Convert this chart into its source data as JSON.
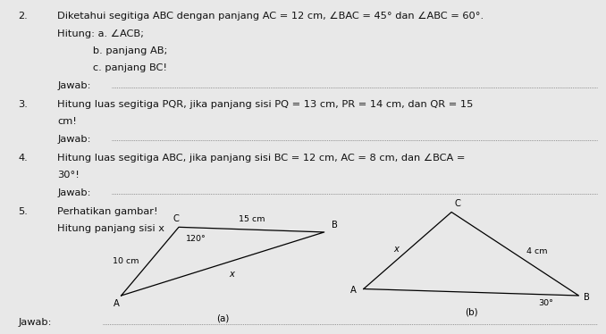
{
  "bg_color": "#e8e8e8",
  "text_color": "#111111",
  "questions": [
    {
      "num": "2.",
      "line1": "Diketahui segitiga ABC dengan panjang AC = 12 cm, ∠BAC = 45° dan ∠ABC = 60°.",
      "line2": "Hitung: a. ∠ACB;",
      "line3": "           b. panjang AB;",
      "line4": "           c. panjang BC!",
      "jawab": "Jawab: "
    },
    {
      "num": "3.",
      "line1": "Hitung luas segitiga PQR, jika panjang sisi PQ = 13 cm, PR = 14 cm, dan QR = 15",
      "line2": "cm!",
      "jawab": "Jawab: "
    },
    {
      "num": "4.",
      "line1": "Hitung luas segitiga ABC, jika panjang sisi BC = 12 cm, AC = 8 cm, dan ∠BCA =",
      "line2": "30°!",
      "jawab": "Jawab: "
    },
    {
      "num": "5.",
      "line1": "Perhatikan gambar!",
      "line2": "Hitung panjang sisi x",
      "jawab": "Jawab: "
    }
  ],
  "tri_a": {
    "A": [
      0.2,
      0.115
    ],
    "C": [
      0.295,
      0.32
    ],
    "B": [
      0.535,
      0.305
    ],
    "label_A": "A",
    "label_C": "C",
    "label_B": "B",
    "angle": "120°",
    "side_AC": "10 cm",
    "side_CB": "15 cm",
    "side_AB": "x",
    "caption": "(a)"
  },
  "tri_b": {
    "A": [
      0.6,
      0.135
    ],
    "C": [
      0.745,
      0.365
    ],
    "B": [
      0.955,
      0.115
    ],
    "label_A": "A",
    "label_C": "C",
    "label_B": "B",
    "angle": "30°",
    "side_AC": "x",
    "side_CB": "4 cm",
    "caption": "(b)"
  }
}
